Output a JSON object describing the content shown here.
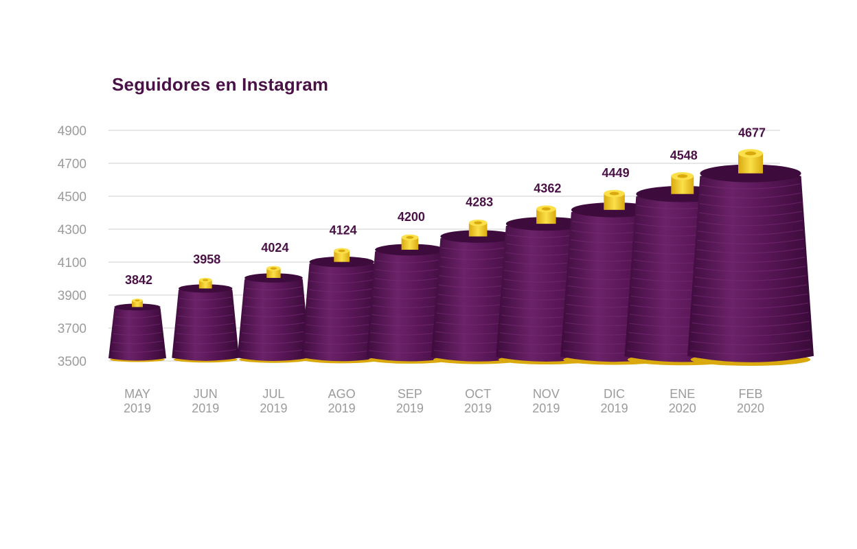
{
  "chart_data": {
    "type": "bar",
    "title": "Seguidores en Instagram",
    "xlabel": "",
    "ylabel": "",
    "ylim": [
      3500,
      4900
    ],
    "yticks": [
      3500,
      3700,
      3900,
      4100,
      4300,
      4500,
      4700,
      4900
    ],
    "grid": true,
    "categories": [
      [
        "MAY",
        "2019"
      ],
      [
        "JUN",
        "2019"
      ],
      [
        "JUL",
        "2019"
      ],
      [
        "AGO",
        "2019"
      ],
      [
        "SEP",
        "2019"
      ],
      [
        "OCT",
        "2019"
      ],
      [
        "NOV",
        "2019"
      ],
      [
        "DIC",
        "2019"
      ],
      [
        "ENE",
        "2020"
      ],
      [
        "FEB",
        "2020"
      ]
    ],
    "values": [
      3842,
      3958,
      4024,
      4124,
      4200,
      4283,
      4362,
      4449,
      4548,
      4677
    ],
    "bar_style": "thread-spool",
    "colors": {
      "thread": "#5a1758",
      "thread_dark": "#3d0b3c",
      "thread_light": "#7a2c78",
      "core": "#f5cf1c",
      "core_dark": "#d9a90e",
      "grid": "#cfcfcf",
      "tick_text": "#9b9b9b",
      "label_text": "#4a1146"
    }
  }
}
